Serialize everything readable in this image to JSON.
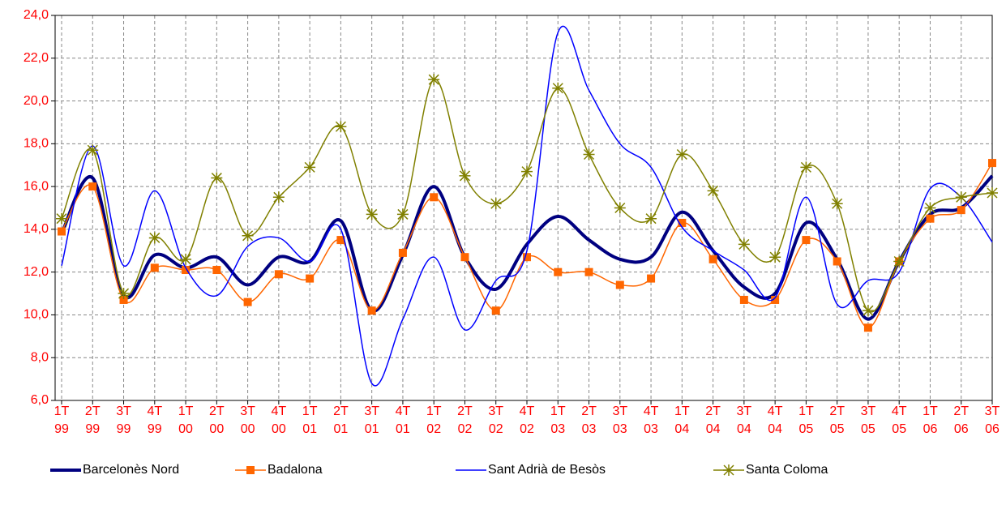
{
  "chart_data": {
    "type": "line",
    "categories": [
      [
        "1T",
        "99"
      ],
      [
        "2T",
        "99"
      ],
      [
        "3T",
        "99"
      ],
      [
        "4T",
        "99"
      ],
      [
        "1T",
        "00"
      ],
      [
        "2T",
        "00"
      ],
      [
        "3T",
        "00"
      ],
      [
        "4T",
        "00"
      ],
      [
        "1T",
        "01"
      ],
      [
        "2T",
        "01"
      ],
      [
        "3T",
        "01"
      ],
      [
        "4T",
        "01"
      ],
      [
        "1T",
        "02"
      ],
      [
        "2T",
        "02"
      ],
      [
        "3T",
        "02"
      ],
      [
        "4T",
        "02"
      ],
      [
        "1T",
        "03"
      ],
      [
        "2T",
        "03"
      ],
      [
        "3T",
        "03"
      ],
      [
        "4T",
        "03"
      ],
      [
        "1T",
        "04"
      ],
      [
        "2T",
        "04"
      ],
      [
        "3T",
        "04"
      ],
      [
        "4T",
        "04"
      ],
      [
        "1T",
        "05"
      ],
      [
        "2T",
        "05"
      ],
      [
        "3T",
        "05"
      ],
      [
        "4T",
        "05"
      ],
      [
        "1T",
        "06"
      ],
      [
        "2T",
        "06"
      ],
      [
        "3T",
        "06"
      ]
    ],
    "series": [
      {
        "name": "Barcelonès Nord",
        "color": "#000080",
        "width": 4,
        "marker": null,
        "smooth": true,
        "values": [
          13.8,
          16.4,
          10.9,
          12.8,
          12.2,
          12.7,
          11.4,
          12.7,
          12.5,
          14.4,
          10.2,
          12.8,
          16.0,
          12.7,
          11.2,
          13.3,
          14.6,
          13.5,
          12.6,
          12.7,
          14.8,
          13.0,
          11.3,
          11.0,
          14.3,
          12.6,
          9.8,
          12.5,
          14.7,
          15.0,
          16.5
        ]
      },
      {
        "name": "Badalona",
        "color": "#ff6600",
        "width": 1.5,
        "marker": "square",
        "smooth": true,
        "values": [
          13.9,
          16.0,
          10.7,
          12.2,
          12.1,
          12.1,
          10.6,
          11.9,
          11.7,
          13.5,
          10.2,
          12.9,
          15.5,
          12.7,
          10.2,
          12.7,
          12.0,
          12.0,
          11.4,
          11.7,
          14.3,
          12.6,
          10.7,
          10.7,
          13.5,
          12.5,
          9.4,
          12.5,
          14.5,
          14.9,
          17.1
        ]
      },
      {
        "name": "Sant Adrià de Besòs",
        "color": "#0000ff",
        "width": 1.5,
        "marker": null,
        "smooth": true,
        "values": [
          12.3,
          17.9,
          12.3,
          15.8,
          12.2,
          10.9,
          13.2,
          13.6,
          12.5,
          14.0,
          6.8,
          9.8,
          12.7,
          9.3,
          11.6,
          13.0,
          23.2,
          20.5,
          18.0,
          16.9,
          14.1,
          13.0,
          12.1,
          10.8,
          15.5,
          10.5,
          11.6,
          12.0,
          15.9,
          15.5,
          13.4
        ]
      },
      {
        "name": "Santa Coloma",
        "color": "#808000",
        "width": 1.5,
        "marker": "star",
        "smooth": true,
        "values": [
          14.5,
          17.7,
          11.0,
          13.6,
          12.6,
          16.4,
          13.7,
          15.5,
          16.9,
          18.8,
          14.7,
          14.7,
          21.0,
          16.5,
          15.2,
          16.7,
          20.6,
          17.5,
          15.0,
          14.5,
          17.5,
          15.8,
          13.3,
          12.7,
          16.9,
          15.2,
          10.2,
          12.5,
          15.0,
          15.5,
          15.7
        ]
      }
    ],
    "ylim": [
      6,
      24
    ],
    "yticks": [
      {
        "value": 6,
        "label": "6,0"
      },
      {
        "value": 8,
        "label": "8,0"
      },
      {
        "value": 10,
        "label": "10,0"
      },
      {
        "value": 12,
        "label": "12,0"
      },
      {
        "value": 14,
        "label": "14,0"
      },
      {
        "value": 16,
        "label": "16,0"
      },
      {
        "value": 18,
        "label": "18,0"
      },
      {
        "value": 20,
        "label": "20,0"
      },
      {
        "value": 22,
        "label": "22,0"
      },
      {
        "value": 24,
        "label": "24,0"
      }
    ],
    "grid": true,
    "tick_color": "#ff0000",
    "legend": "bottom"
  }
}
